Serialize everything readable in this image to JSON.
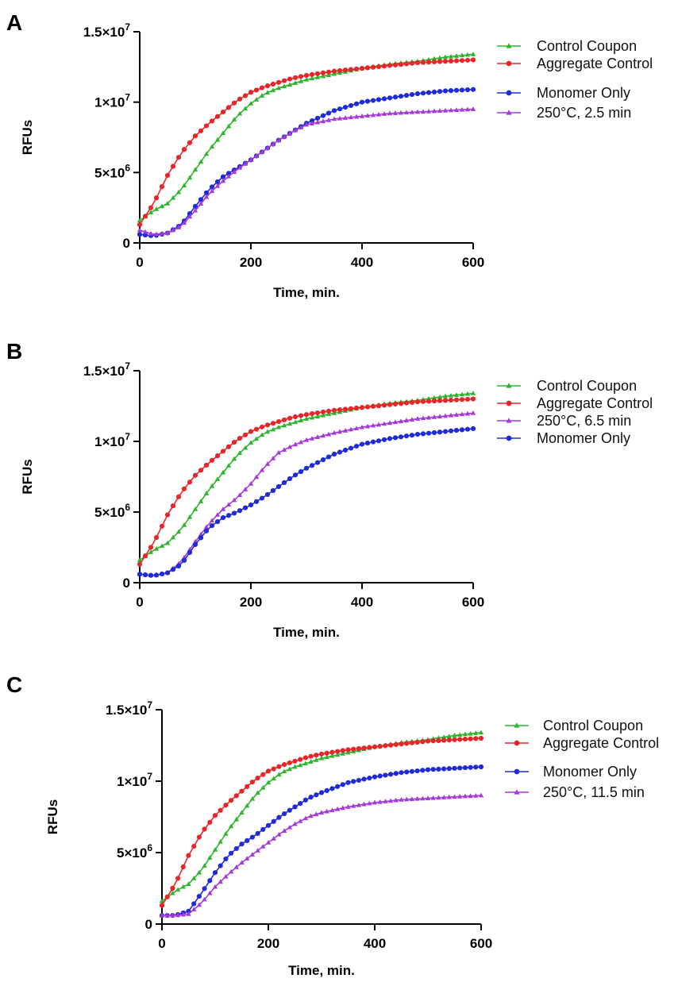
{
  "chart_data": [
    {
      "panel": "A",
      "type": "line",
      "xlabel": "Time, min.",
      "ylabel": "RFUs",
      "xlim": [
        0,
        600
      ],
      "ylim": [
        0,
        15000000
      ],
      "xticks": [
        0,
        200,
        400,
        600
      ],
      "xtick_labels": [
        "0",
        "200",
        "400",
        "600"
      ],
      "yticks": [
        0,
        5000000,
        10000000,
        15000000
      ],
      "ytick_labels": [
        "0",
        "5×10",
        "1×10",
        "1.5×10"
      ],
      "ytick_exponents": [
        "",
        "6",
        "7",
        "7"
      ],
      "legend_groups": [
        [
          "Control Coupon",
          "Aggregate Control"
        ],
        [
          "Monomer Only",
          "250°C, 2.5 min"
        ]
      ],
      "series": [
        {
          "name": "Control Coupon",
          "color": "#2db52d",
          "marker": "triangle",
          "x": [
            0,
            25,
            50,
            75,
            100,
            125,
            150,
            175,
            200,
            225,
            250,
            275,
            300,
            350,
            400,
            450,
            500,
            550,
            600
          ],
          "y": [
            1600000,
            2300000,
            2800000,
            3800000,
            5200000,
            6600000,
            7800000,
            9000000,
            9900000,
            10600000,
            11000000,
            11300000,
            11600000,
            12000000,
            12400000,
            12700000,
            12900000,
            13200000,
            13400000
          ]
        },
        {
          "name": "Aggregate Control",
          "color": "#e8262a",
          "marker": "circle",
          "x": [
            0,
            25,
            50,
            75,
            100,
            125,
            150,
            175,
            200,
            225,
            250,
            275,
            300,
            350,
            400,
            450,
            500,
            550,
            600
          ],
          "y": [
            1300000,
            2800000,
            4800000,
            6400000,
            7600000,
            8500000,
            9300000,
            10100000,
            10700000,
            11100000,
            11400000,
            11700000,
            11900000,
            12200000,
            12400000,
            12600000,
            12800000,
            12900000,
            13000000
          ]
        },
        {
          "name": "Monomer Only",
          "color": "#1f2bd8",
          "marker": "circle",
          "x": [
            0,
            25,
            50,
            75,
            100,
            125,
            150,
            175,
            200,
            225,
            250,
            275,
            300,
            350,
            400,
            450,
            500,
            550,
            600
          ],
          "y": [
            600000,
            500000,
            700000,
            1300000,
            2600000,
            3800000,
            4700000,
            5300000,
            5900000,
            6600000,
            7300000,
            7900000,
            8500000,
            9400000,
            10000000,
            10300000,
            10600000,
            10800000,
            10900000
          ]
        },
        {
          "name": "250°C, 2.5 min",
          "color": "#a43ad9",
          "marker": "triangle",
          "x": [
            0,
            25,
            50,
            75,
            100,
            125,
            150,
            175,
            200,
            225,
            250,
            275,
            300,
            350,
            400,
            450,
            500,
            550,
            600
          ],
          "y": [
            900000,
            600000,
            700000,
            1200000,
            2300000,
            3500000,
            4400000,
            5200000,
            5900000,
            6600000,
            7300000,
            7900000,
            8400000,
            8800000,
            9000000,
            9200000,
            9300000,
            9400000,
            9500000
          ]
        }
      ]
    },
    {
      "panel": "B",
      "type": "line",
      "xlabel": "Time, min.",
      "ylabel": "RFUs",
      "xlim": [
        0,
        600
      ],
      "ylim": [
        0,
        15000000
      ],
      "xticks": [
        0,
        200,
        400,
        600
      ],
      "xtick_labels": [
        "0",
        "200",
        "400",
        "600"
      ],
      "yticks": [
        0,
        5000000,
        10000000,
        15000000
      ],
      "ytick_labels": [
        "0",
        "5×10",
        "1×10",
        "1.5×10"
      ],
      "ytick_exponents": [
        "",
        "6",
        "7",
        "7"
      ],
      "legend_groups": [
        [
          "Control Coupon",
          "Aggregate Control",
          "250°C, 6.5 min",
          "Monomer Only"
        ]
      ],
      "series": [
        {
          "name": "Control Coupon",
          "color": "#2db52d",
          "marker": "triangle",
          "x": [
            0,
            25,
            50,
            75,
            100,
            125,
            150,
            175,
            200,
            225,
            250,
            275,
            300,
            350,
            400,
            450,
            500,
            550,
            600
          ],
          "y": [
            1600000,
            2300000,
            2800000,
            3800000,
            5200000,
            6600000,
            7800000,
            9000000,
            9900000,
            10600000,
            11000000,
            11300000,
            11600000,
            12000000,
            12400000,
            12700000,
            12900000,
            13200000,
            13400000
          ]
        },
        {
          "name": "Aggregate Control",
          "color": "#e8262a",
          "marker": "circle",
          "x": [
            0,
            25,
            50,
            75,
            100,
            125,
            150,
            175,
            200,
            225,
            250,
            275,
            300,
            350,
            400,
            450,
            500,
            550,
            600
          ],
          "y": [
            1300000,
            2800000,
            4800000,
            6400000,
            7600000,
            8500000,
            9300000,
            10100000,
            10700000,
            11100000,
            11400000,
            11700000,
            11900000,
            12200000,
            12400000,
            12600000,
            12800000,
            12900000,
            13000000
          ]
        },
        {
          "name": "250°C, 6.5 min",
          "color": "#a43ad9",
          "marker": "triangle",
          "x": [
            0,
            25,
            50,
            75,
            100,
            125,
            150,
            175,
            200,
            225,
            250,
            275,
            300,
            350,
            400,
            450,
            500,
            550,
            600
          ],
          "y": [
            600000,
            500000,
            700000,
            1500000,
            2900000,
            4200000,
            5200000,
            6000000,
            7000000,
            8200000,
            9200000,
            9700000,
            10100000,
            10600000,
            11000000,
            11300000,
            11600000,
            11800000,
            12000000
          ]
        },
        {
          "name": "Monomer Only",
          "color": "#1f2bd8",
          "marker": "circle",
          "x": [
            0,
            25,
            50,
            75,
            100,
            125,
            150,
            175,
            200,
            225,
            250,
            275,
            300,
            350,
            400,
            450,
            500,
            550,
            600
          ],
          "y": [
            600000,
            500000,
            700000,
            1300000,
            2700000,
            3900000,
            4600000,
            5000000,
            5500000,
            6100000,
            6800000,
            7500000,
            8100000,
            9100000,
            9800000,
            10200000,
            10500000,
            10700000,
            10900000
          ]
        }
      ]
    },
    {
      "panel": "C",
      "type": "line",
      "xlabel": "Time, min.",
      "ylabel": "RFUs",
      "xlim": [
        0,
        600
      ],
      "ylim": [
        0,
        15000000
      ],
      "xticks": [
        0,
        200,
        400,
        600
      ],
      "xtick_labels": [
        "0",
        "200",
        "400",
        "600"
      ],
      "yticks": [
        0,
        5000000,
        10000000,
        15000000
      ],
      "ytick_labels": [
        "0",
        "5×10",
        "1×10",
        "1.5×10"
      ],
      "ytick_exponents": [
        "",
        "6",
        "7",
        "7"
      ],
      "legend_groups": [
        [
          "Control Coupon",
          "Aggregate Control"
        ],
        [
          "Monomer Only",
          "250°C, 11.5 min"
        ]
      ],
      "series": [
        {
          "name": "Control Coupon",
          "color": "#2db52d",
          "marker": "triangle",
          "x": [
            0,
            25,
            50,
            75,
            100,
            125,
            150,
            175,
            200,
            225,
            250,
            275,
            300,
            350,
            400,
            450,
            500,
            550,
            600
          ],
          "y": [
            1600000,
            2300000,
            2800000,
            3800000,
            5200000,
            6600000,
            7800000,
            9000000,
            9900000,
            10600000,
            11000000,
            11300000,
            11600000,
            12000000,
            12400000,
            12700000,
            12900000,
            13200000,
            13400000
          ]
        },
        {
          "name": "Aggregate Control",
          "color": "#e8262a",
          "marker": "circle",
          "x": [
            0,
            25,
            50,
            75,
            100,
            125,
            150,
            175,
            200,
            225,
            250,
            275,
            300,
            350,
            400,
            450,
            500,
            550,
            600
          ],
          "y": [
            1300000,
            2800000,
            4800000,
            6400000,
            7600000,
            8500000,
            9300000,
            10100000,
            10700000,
            11100000,
            11400000,
            11700000,
            11900000,
            12200000,
            12400000,
            12600000,
            12800000,
            12900000,
            13000000
          ]
        },
        {
          "name": "Monomer Only",
          "color": "#1f2bd8",
          "marker": "circle",
          "x": [
            0,
            25,
            50,
            75,
            100,
            125,
            150,
            175,
            200,
            225,
            250,
            275,
            300,
            350,
            400,
            450,
            500,
            550,
            600
          ],
          "y": [
            600000,
            600000,
            900000,
            2200000,
            3600000,
            4800000,
            5600000,
            6200000,
            6900000,
            7600000,
            8200000,
            8800000,
            9200000,
            9900000,
            10300000,
            10600000,
            10800000,
            10900000,
            11000000
          ]
        },
        {
          "name": "250°C, 11.5 min",
          "color": "#a43ad9",
          "marker": "triangle",
          "x": [
            0,
            25,
            50,
            75,
            100,
            125,
            150,
            175,
            200,
            225,
            250,
            275,
            300,
            350,
            400,
            450,
            500,
            550,
            600
          ],
          "y": [
            600000,
            600000,
            700000,
            1500000,
            2600000,
            3500000,
            4300000,
            5000000,
            5700000,
            6400000,
            7000000,
            7500000,
            7800000,
            8200000,
            8500000,
            8700000,
            8800000,
            8900000,
            9000000
          ]
        }
      ]
    }
  ]
}
